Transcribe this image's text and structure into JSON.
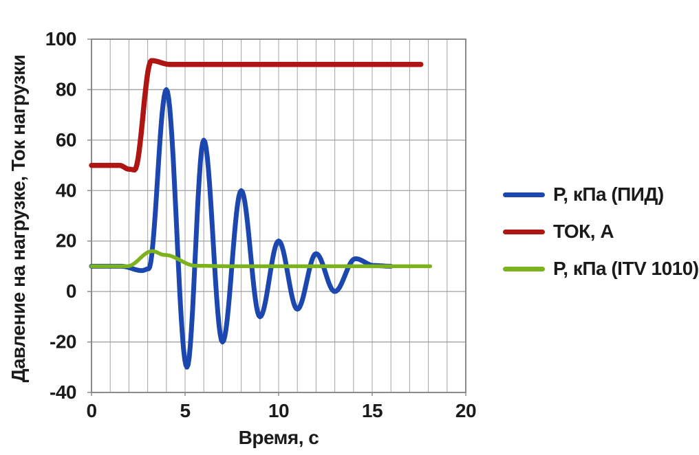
{
  "chart_data": {
    "type": "line",
    "title": "",
    "xlabel": "Время, с",
    "ylabel": "Давление на нагрузке, Ток нагрузки",
    "xlim": [
      0,
      20
    ],
    "ylim": [
      -40,
      100
    ],
    "x_ticks": [
      0,
      5,
      10,
      15,
      20
    ],
    "y_ticks": [
      100,
      80,
      60,
      40,
      20,
      0,
      -20,
      -40
    ],
    "x_minor_grid_step": 1,
    "grid": true,
    "legend_position": "right-center",
    "frame_color": "#8a8a8a",
    "grid_color": "#ababab",
    "series": [
      {
        "id": "pid",
        "name": "Р, кПа (ПИД)",
        "color": "#1c47ae",
        "width": 7,
        "points": [
          [
            0,
            10
          ],
          [
            1.6,
            10
          ],
          [
            2.7,
            8.3
          ],
          [
            3.05,
            9
          ],
          [
            4,
            80
          ],
          [
            5.1,
            -30
          ],
          [
            6,
            60
          ],
          [
            7,
            -20
          ],
          [
            8,
            40
          ],
          [
            9,
            -10
          ],
          [
            10,
            20
          ],
          [
            11,
            -7
          ],
          [
            12,
            15
          ],
          [
            13,
            0
          ],
          [
            14.1,
            13
          ],
          [
            15.1,
            10.3
          ],
          [
            16,
            10
          ]
        ]
      },
      {
        "id": "tok",
        "name": "ТОК, А",
        "color": "#ae1614",
        "width": 7.5,
        "points": [
          [
            0,
            50
          ],
          [
            1.5,
            50
          ],
          [
            2.0,
            48.5
          ],
          [
            2.3,
            48.2
          ],
          [
            3.2,
            91.5
          ],
          [
            4.2,
            90
          ],
          [
            17.6,
            90
          ]
        ]
      },
      {
        "id": "itv1010",
        "name": "Р, кПа (ITV 1010)",
        "color": "#7cb21e",
        "width": 5.5,
        "points": [
          [
            0,
            10
          ],
          [
            1.9,
            10
          ],
          [
            3.25,
            16
          ],
          [
            3.9,
            14.5
          ],
          [
            5.6,
            10.2
          ],
          [
            7.5,
            10
          ],
          [
            18.1,
            10
          ]
        ]
      }
    ]
  }
}
